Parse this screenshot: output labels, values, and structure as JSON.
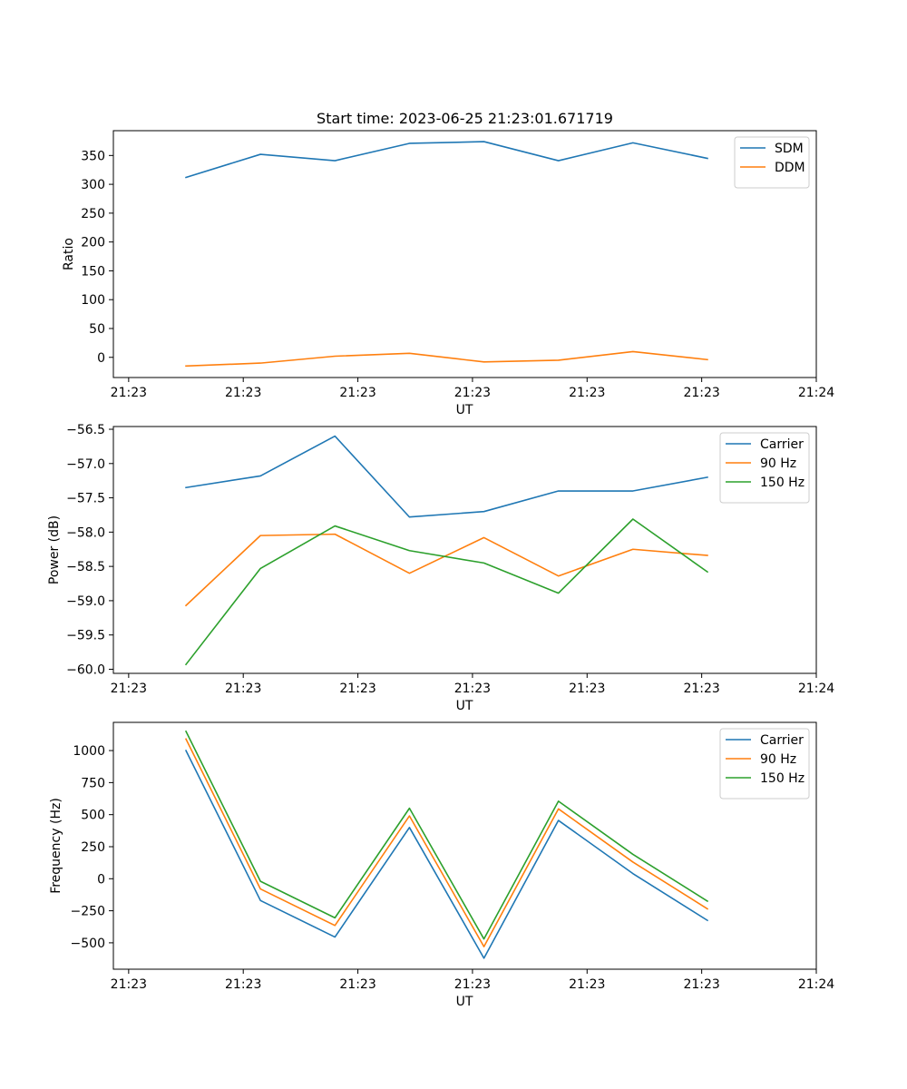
{
  "figure": {
    "title": "Start time: 2023-06-25 21:23:01.671719"
  },
  "colors": {
    "blue": "#1f77b4",
    "orange": "#ff7f0e",
    "green": "#2ca02c"
  },
  "chart_data": [
    {
      "type": "line",
      "xlabel": "UT",
      "ylabel": "Ratio",
      "x_tick_labels": [
        "21:23",
        "21:23",
        "21:23",
        "21:23",
        "21:23",
        "21:23",
        "21:24"
      ],
      "x_ticks": [
        0,
        6,
        12,
        18,
        24,
        30,
        36
      ],
      "xlim": [
        -0.8,
        36
      ],
      "y_ticks": [
        0,
        50,
        100,
        150,
        200,
        250,
        300,
        350
      ],
      "y_tick_labels": [
        "0",
        "50",
        "100",
        "150",
        "200",
        "250",
        "300",
        "350"
      ],
      "ylim": [
        -35,
        393
      ],
      "x": [
        3,
        6.9,
        10.8,
        14.7,
        18.6,
        22.5,
        26.4,
        30.3
      ],
      "legend_position": "upper right",
      "series": [
        {
          "name": "SDM",
          "color": "#1f77b4",
          "values": [
            312,
            352,
            341,
            371,
            374,
            341,
            372,
            345
          ]
        },
        {
          "name": "DDM",
          "color": "#ff7f0e",
          "values": [
            -15,
            -10,
            2,
            7,
            -8,
            -5,
            10,
            -4
          ]
        }
      ]
    },
    {
      "type": "line",
      "xlabel": "UT",
      "ylabel": "Power (dB)",
      "x_tick_labels": [
        "21:23",
        "21:23",
        "21:23",
        "21:23",
        "21:23",
        "21:23",
        "21:24"
      ],
      "x_ticks": [
        0,
        6,
        12,
        18,
        24,
        30,
        36
      ],
      "xlim": [
        -0.8,
        36
      ],
      "y_ticks": [
        -60.0,
        -59.5,
        -59.0,
        -58.5,
        -58.0,
        -57.5,
        -57.0,
        -56.5
      ],
      "y_tick_labels": [
        "−60.0",
        "−59.5",
        "−59.0",
        "−58.5",
        "−58.0",
        "−57.5",
        "−57.0",
        "−56.5"
      ],
      "ylim": [
        -60.06,
        -56.46
      ],
      "x": [
        3,
        6.9,
        10.8,
        14.7,
        18.6,
        22.5,
        26.4,
        30.3
      ],
      "legend_position": "upper right",
      "series": [
        {
          "name": "Carrier",
          "color": "#1f77b4",
          "values": [
            -57.35,
            -57.18,
            -56.6,
            -57.78,
            -57.7,
            -57.4,
            -57.4,
            -57.2
          ]
        },
        {
          "name": "90 Hz",
          "color": "#ff7f0e",
          "values": [
            -59.07,
            -58.05,
            -58.03,
            -58.6,
            -58.08,
            -58.64,
            -58.25,
            -58.34
          ]
        },
        {
          "name": "150 Hz",
          "color": "#2ca02c",
          "values": [
            -59.93,
            -58.53,
            -57.91,
            -58.27,
            -58.45,
            -58.89,
            -57.81,
            -58.58
          ]
        }
      ]
    },
    {
      "type": "line",
      "xlabel": "UT",
      "ylabel": "Frequency (Hz)",
      "x_tick_labels": [
        "21:23",
        "21:23",
        "21:23",
        "21:23",
        "21:23",
        "21:23",
        "21:24"
      ],
      "x_ticks": [
        0,
        6,
        12,
        18,
        24,
        30,
        36
      ],
      "xlim": [
        -0.8,
        36
      ],
      "y_ticks": [
        -500,
        -250,
        0,
        250,
        500,
        750,
        1000
      ],
      "y_tick_labels": [
        "−500",
        "−250",
        "0",
        "250",
        "500",
        "750",
        "1000"
      ],
      "ylim": [
        -706,
        1220
      ],
      "x": [
        3,
        6.9,
        10.8,
        14.7,
        18.6,
        22.5,
        26.4,
        30.3
      ],
      "legend_position": "upper right",
      "series": [
        {
          "name": "Carrier",
          "color": "#1f77b4",
          "values": [
            1000,
            -170,
            -455,
            400,
            -620,
            455,
            40,
            -325
          ]
        },
        {
          "name": "90 Hz",
          "color": "#ff7f0e",
          "values": [
            1090,
            -80,
            -365,
            490,
            -530,
            545,
            130,
            -235
          ]
        },
        {
          "name": "150 Hz",
          "color": "#2ca02c",
          "values": [
            1150,
            -20,
            -305,
            550,
            -470,
            605,
            190,
            -175
          ]
        }
      ]
    }
  ]
}
